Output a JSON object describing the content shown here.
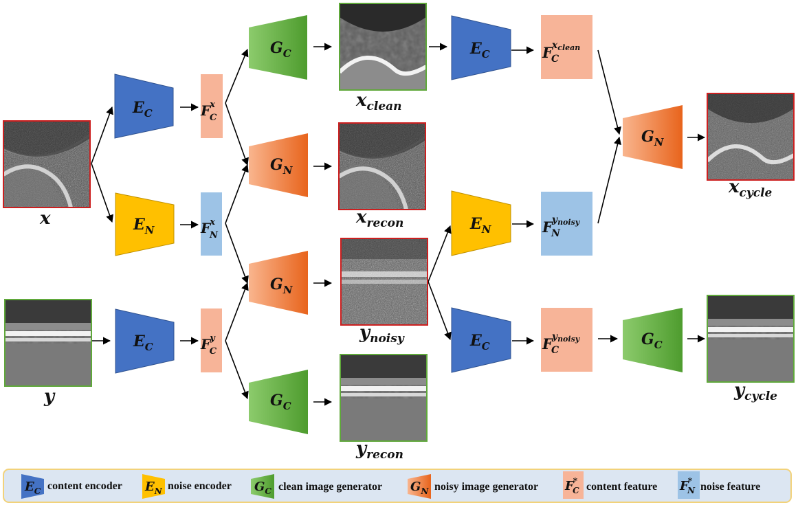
{
  "nodes": {
    "x_input": {
      "label": "x"
    },
    "y_input": {
      "label": "y"
    },
    "enc_c_x": {
      "letter": "E",
      "sub": "C"
    },
    "enc_n_x": {
      "letter": "E",
      "sub": "N"
    },
    "enc_c_y": {
      "letter": "E",
      "sub": "C"
    },
    "feat_c_x": {
      "letter": "F",
      "sub": "C",
      "sup": "x"
    },
    "feat_n_x": {
      "letter": "F",
      "sub": "N",
      "sup": "x"
    },
    "feat_c_y": {
      "letter": "F",
      "sub": "C",
      "sup": "y"
    },
    "gen_c_1": {
      "letter": "G",
      "sub": "C"
    },
    "gen_n_1": {
      "letter": "G",
      "sub": "N"
    },
    "gen_n_2": {
      "letter": "G",
      "sub": "N"
    },
    "gen_c_2": {
      "letter": "G",
      "sub": "C"
    },
    "x_clean": {
      "base": "x",
      "sub": "clean"
    },
    "x_recon": {
      "base": "x",
      "sub": "recon"
    },
    "y_noisy": {
      "base": "y",
      "sub": "noisy"
    },
    "y_recon": {
      "base": "y",
      "sub": "recon"
    },
    "enc_c_x2": {
      "letter": "E",
      "sub": "C"
    },
    "enc_n_y2": {
      "letter": "E",
      "sub": "N"
    },
    "enc_c_y2": {
      "letter": "E",
      "sub": "C"
    },
    "feat_c_xclean": {
      "letter": "F",
      "sub": "C",
      "sup": "x",
      "supsub": "clean"
    },
    "feat_n_ynoisy": {
      "letter": "F",
      "sub": "N",
      "sup": "y",
      "supsub": "noisy"
    },
    "feat_c_ynoisy": {
      "letter": "F",
      "sub": "C",
      "sup": "y",
      "supsub": "noisy"
    },
    "gen_n_3": {
      "letter": "G",
      "sub": "N"
    },
    "gen_c_3": {
      "letter": "G",
      "sub": "C"
    },
    "x_cycle": {
      "base": "x",
      "sub": "cycle"
    },
    "y_cycle": {
      "base": "y",
      "sub": "cycle"
    }
  },
  "legend": [
    {
      "symbol": "E",
      "sub": "C",
      "text": "content encoder",
      "kind": "content-encoder"
    },
    {
      "symbol": "E",
      "sub": "N",
      "text": "noise encoder",
      "kind": "noise-encoder"
    },
    {
      "symbol": "G",
      "sub": "C",
      "text": "clean image generator",
      "kind": "clean-generator"
    },
    {
      "symbol": "G",
      "sub": "N",
      "text": "noisy image generator",
      "kind": "noisy-generator"
    },
    {
      "symbol": "F",
      "sub": "C",
      "sup": "*",
      "text": "content feature",
      "kind": "content-feature"
    },
    {
      "symbol": "F",
      "sub": "N",
      "sup": "*",
      "text": "noise feature",
      "kind": "noise-feature"
    }
  ],
  "colors": {
    "content_encoder": "#4472C4",
    "noise_encoder": "#FFC000",
    "clean_generator": "#6AAE48",
    "noisy_generator": "#F07A2A",
    "content_feature": "#F7B498",
    "noise_feature": "#9DC3E6",
    "noisy_image_border": "#CC1F1F",
    "clean_image_border": "#5FA83A",
    "legend_background": "#DCE6F2",
    "legend_border": "#F2D27A"
  }
}
